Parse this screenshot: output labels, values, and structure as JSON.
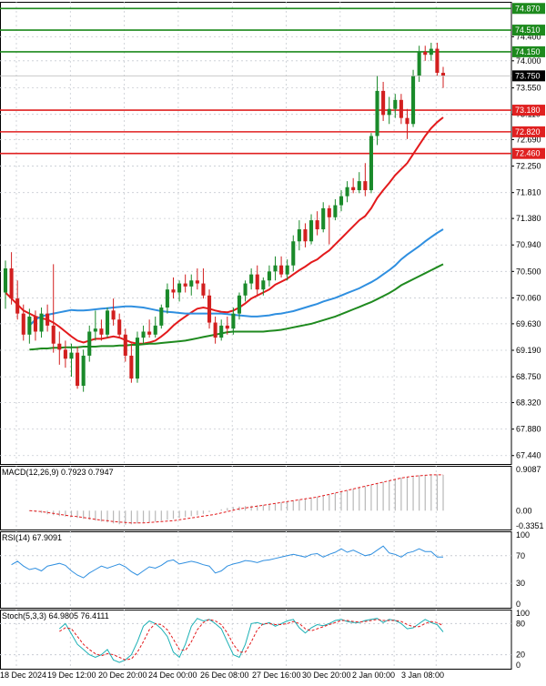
{
  "colors": {
    "background": "#ffffff",
    "grid": "#c8ccd2",
    "axis": "#000000",
    "up_candle": "#1a8a2a",
    "down_candle": "#d21f1f",
    "resistance_line": "#1d8a1d",
    "support_line": "#e02020",
    "price_label_bg": "#000000",
    "ma_fast": "#e31a1c",
    "ma_mid": "#2f8fe0",
    "ma_slow": "#1f8a1f",
    "macd_hist": "#b8b8b8",
    "macd_signal": "#e31a1c",
    "rsi_line": "#2f8fe0",
    "stoch_main": "#1ab0b5",
    "stoch_signal": "#e31a1c"
  },
  "chart_data": [
    {
      "type": "candlestick",
      "panel": "price",
      "yaxis": {
        "ylim": [
          67.3,
          74.98
        ],
        "tick_labels": [
          "74.400",
          "74.000",
          "73.550",
          "73.110",
          "72.690",
          "72.250",
          "71.810",
          "71.380",
          "70.940",
          "70.500",
          "70.060",
          "69.630",
          "69.190",
          "68.750",
          "68.320",
          "67.880",
          "67.440"
        ]
      },
      "xaxis": {
        "tick_labels": [
          "18 Dec 2024",
          "19 Dec 12:00",
          "20 Dec 20:00",
          "24 Dec 00:00",
          "26 Dec 08:00",
          "27 Dec 16:00",
          "30 Dec 20:00",
          "2 Jan 00:00",
          "3 Jan 08:00"
        ]
      },
      "current_price": "73.750",
      "resistance_levels": [
        "74.870",
        "74.510",
        "74.150"
      ],
      "support_levels": [
        "73.180",
        "72.820",
        "72.460"
      ],
      "candles": [
        {
          "o": 70.15,
          "h": 70.68,
          "l": 69.88,
          "c": 70.55
        },
        {
          "o": 70.55,
          "h": 70.82,
          "l": 69.95,
          "c": 70.05
        },
        {
          "o": 70.05,
          "h": 70.35,
          "l": 69.7,
          "c": 69.8
        },
        {
          "o": 69.8,
          "h": 69.95,
          "l": 69.35,
          "c": 69.45
        },
        {
          "o": 69.45,
          "h": 69.88,
          "l": 69.3,
          "c": 69.75
        },
        {
          "o": 69.75,
          "h": 69.85,
          "l": 69.35,
          "c": 69.5
        },
        {
          "o": 69.5,
          "h": 69.9,
          "l": 69.4,
          "c": 69.8
        },
        {
          "o": 69.8,
          "h": 69.95,
          "l": 69.5,
          "c": 69.6
        },
        {
          "o": 69.6,
          "h": 70.62,
          "l": 69.15,
          "c": 69.3
        },
        {
          "o": 69.3,
          "h": 69.5,
          "l": 68.95,
          "c": 69.2
        },
        {
          "o": 69.2,
          "h": 69.35,
          "l": 68.9,
          "c": 69.05
        },
        {
          "o": 69.05,
          "h": 69.3,
          "l": 68.75,
          "c": 69.15
        },
        {
          "o": 69.15,
          "h": 69.25,
          "l": 68.55,
          "c": 68.6
        },
        {
          "o": 68.6,
          "h": 69.2,
          "l": 68.5,
          "c": 69.1
        },
        {
          "o": 69.1,
          "h": 69.6,
          "l": 69.0,
          "c": 69.5
        },
        {
          "o": 69.5,
          "h": 69.85,
          "l": 69.35,
          "c": 69.55
        },
        {
          "o": 69.55,
          "h": 69.7,
          "l": 69.35,
          "c": 69.45
        },
        {
          "o": 69.45,
          "h": 69.9,
          "l": 69.4,
          "c": 69.85
        },
        {
          "o": 69.85,
          "h": 70.05,
          "l": 69.6,
          "c": 69.7
        },
        {
          "o": 69.7,
          "h": 69.8,
          "l": 69.4,
          "c": 69.45
        },
        {
          "o": 69.45,
          "h": 69.55,
          "l": 69.0,
          "c": 69.1
        },
        {
          "o": 69.1,
          "h": 69.3,
          "l": 68.65,
          "c": 68.72
        },
        {
          "o": 68.72,
          "h": 69.5,
          "l": 68.65,
          "c": 69.4
        },
        {
          "o": 69.4,
          "h": 69.6,
          "l": 69.3,
          "c": 69.5
        },
        {
          "o": 69.5,
          "h": 69.7,
          "l": 69.4,
          "c": 69.45
        },
        {
          "o": 69.45,
          "h": 69.75,
          "l": 69.4,
          "c": 69.6
        },
        {
          "o": 69.6,
          "h": 69.95,
          "l": 69.55,
          "c": 69.9
        },
        {
          "o": 69.9,
          "h": 70.3,
          "l": 69.8,
          "c": 70.2
        },
        {
          "o": 70.2,
          "h": 70.4,
          "l": 70.05,
          "c": 70.15
        },
        {
          "o": 70.15,
          "h": 70.35,
          "l": 70.0,
          "c": 70.3
        },
        {
          "o": 70.3,
          "h": 70.45,
          "l": 70.15,
          "c": 70.25
        },
        {
          "o": 70.25,
          "h": 70.45,
          "l": 70.1,
          "c": 70.35
        },
        {
          "o": 70.35,
          "h": 70.55,
          "l": 70.2,
          "c": 70.3
        },
        {
          "o": 70.3,
          "h": 70.55,
          "l": 70.05,
          "c": 70.1
        },
        {
          "o": 70.1,
          "h": 70.2,
          "l": 69.55,
          "c": 69.65
        },
        {
          "o": 69.65,
          "h": 69.75,
          "l": 69.3,
          "c": 69.4
        },
        {
          "o": 69.4,
          "h": 69.7,
          "l": 69.35,
          "c": 69.6
        },
        {
          "o": 69.6,
          "h": 69.75,
          "l": 69.45,
          "c": 69.55
        },
        {
          "o": 69.55,
          "h": 69.9,
          "l": 69.45,
          "c": 69.8
        },
        {
          "o": 69.8,
          "h": 70.15,
          "l": 69.7,
          "c": 70.1
        },
        {
          "o": 70.1,
          "h": 70.35,
          "l": 70.0,
          "c": 70.3
        },
        {
          "o": 70.3,
          "h": 70.55,
          "l": 70.2,
          "c": 70.45
        },
        {
          "o": 70.45,
          "h": 70.6,
          "l": 70.1,
          "c": 70.2
        },
        {
          "o": 70.2,
          "h": 70.4,
          "l": 70.1,
          "c": 70.35
        },
        {
          "o": 70.35,
          "h": 70.6,
          "l": 70.25,
          "c": 70.5
        },
        {
          "o": 70.5,
          "h": 70.75,
          "l": 70.35,
          "c": 70.6
        },
        {
          "o": 70.6,
          "h": 70.75,
          "l": 70.4,
          "c": 70.45
        },
        {
          "o": 70.45,
          "h": 70.7,
          "l": 70.35,
          "c": 70.6
        },
        {
          "o": 70.6,
          "h": 71.1,
          "l": 70.5,
          "c": 71.0
        },
        {
          "o": 71.0,
          "h": 71.35,
          "l": 70.85,
          "c": 71.2
        },
        {
          "o": 71.2,
          "h": 71.3,
          "l": 70.9,
          "c": 71.0
        },
        {
          "o": 71.0,
          "h": 71.45,
          "l": 70.95,
          "c": 71.35
        },
        {
          "o": 71.35,
          "h": 71.5,
          "l": 71.1,
          "c": 71.2
        },
        {
          "o": 71.2,
          "h": 71.65,
          "l": 71.15,
          "c": 71.55
        },
        {
          "o": 71.55,
          "h": 71.6,
          "l": 70.95,
          "c": 71.4
        },
        {
          "o": 71.4,
          "h": 71.7,
          "l": 71.35,
          "c": 71.6
        },
        {
          "o": 71.6,
          "h": 71.85,
          "l": 71.5,
          "c": 71.75
        },
        {
          "o": 71.75,
          "h": 72.0,
          "l": 71.65,
          "c": 71.9
        },
        {
          "o": 71.9,
          "h": 72.05,
          "l": 71.8,
          "c": 71.85
        },
        {
          "o": 71.85,
          "h": 72.15,
          "l": 71.8,
          "c": 72.0
        },
        {
          "o": 72.0,
          "h": 72.3,
          "l": 71.75,
          "c": 71.85
        },
        {
          "o": 71.85,
          "h": 72.8,
          "l": 71.8,
          "c": 72.75
        },
        {
          "o": 72.75,
          "h": 73.75,
          "l": 72.6,
          "c": 73.5
        },
        {
          "o": 73.5,
          "h": 73.65,
          "l": 73.0,
          "c": 73.1
        },
        {
          "o": 73.1,
          "h": 73.4,
          "l": 72.95,
          "c": 73.2
        },
        {
          "o": 73.2,
          "h": 73.45,
          "l": 73.05,
          "c": 73.35
        },
        {
          "o": 73.35,
          "h": 73.45,
          "l": 72.95,
          "c": 73.05
        },
        {
          "o": 73.05,
          "h": 73.2,
          "l": 72.7,
          "c": 72.95
        },
        {
          "o": 72.95,
          "h": 73.85,
          "l": 72.9,
          "c": 73.75
        },
        {
          "o": 73.75,
          "h": 74.25,
          "l": 73.65,
          "c": 74.15
        },
        {
          "o": 74.15,
          "h": 74.25,
          "l": 74.0,
          "c": 74.1
        },
        {
          "o": 74.1,
          "h": 74.3,
          "l": 74.0,
          "c": 74.2
        },
        {
          "o": 74.2,
          "h": 74.3,
          "l": 73.75,
          "c": 73.8
        },
        {
          "o": 73.8,
          "h": 73.9,
          "l": 73.55,
          "c": 73.75
        }
      ],
      "moving_averages": [
        {
          "color_key": "ma_fast",
          "values": [
            70.15,
            70.05,
            69.95,
            69.85,
            69.8,
            69.75,
            69.72,
            69.7,
            69.65,
            69.58,
            69.5,
            69.42,
            69.35,
            69.32,
            69.35,
            69.38,
            69.38,
            69.4,
            69.42,
            69.4,
            69.36,
            69.32,
            69.3,
            69.3,
            69.32,
            69.35,
            69.42,
            69.5,
            69.6,
            69.68,
            69.75,
            69.82,
            69.88,
            69.9,
            69.88,
            69.85,
            69.83,
            69.82,
            69.85,
            69.9,
            69.97,
            70.05,
            70.1,
            70.15,
            70.2,
            70.28,
            70.33,
            70.38,
            70.45,
            70.52,
            70.58,
            70.65,
            70.7,
            70.78,
            70.85,
            70.95,
            71.05,
            71.15,
            71.25,
            71.35,
            71.42,
            71.55,
            71.72,
            71.85,
            71.97,
            72.1,
            72.2,
            72.3,
            72.45,
            72.6,
            72.75,
            72.88,
            72.98,
            73.06
          ]
        },
        {
          "color_key": "ma_mid",
          "values": [
            69.6,
            69.7,
            69.75,
            69.78,
            69.8,
            69.82,
            69.84,
            69.86,
            69.85,
            69.85,
            69.86,
            69.87,
            69.88,
            69.89,
            69.9,
            69.91,
            69.92,
            69.92,
            69.91,
            69.9,
            69.88,
            69.86,
            69.84,
            69.83,
            69.82,
            69.81,
            69.8,
            69.8,
            69.8,
            69.8,
            69.8,
            69.8,
            69.8,
            69.79,
            69.78,
            69.77,
            69.76,
            69.75,
            69.75,
            69.76,
            69.77,
            69.79,
            69.8,
            69.82,
            69.84,
            69.87,
            69.9,
            69.93,
            69.96,
            70.0,
            70.03,
            70.06,
            70.1,
            70.14,
            70.18,
            70.22,
            70.27,
            70.32,
            70.38,
            70.45,
            70.52,
            70.6,
            70.7,
            70.78,
            70.85,
            70.92,
            71.0,
            71.07,
            71.14,
            71.2
          ]
        },
        {
          "color_key": "ma_slow",
          "values": [
            69.2,
            69.21,
            69.22,
            69.22,
            69.23,
            69.23,
            69.24,
            69.24,
            69.24,
            69.25,
            69.25,
            69.25,
            69.26,
            69.26,
            69.26,
            69.27,
            69.27,
            69.28,
            69.28,
            69.29,
            69.3,
            69.3,
            69.31,
            69.32,
            69.33,
            69.34,
            69.35,
            69.37,
            69.39,
            69.41,
            69.43,
            69.45,
            69.47,
            69.49,
            69.5,
            69.5,
            69.5,
            69.5,
            69.5,
            69.5,
            69.51,
            69.52,
            69.53,
            69.55,
            69.57,
            69.59,
            69.61,
            69.63,
            69.66,
            69.69,
            69.72,
            69.75,
            69.79,
            69.83,
            69.87,
            69.91,
            69.95,
            69.99,
            70.04,
            70.09,
            70.14,
            70.2,
            70.27,
            70.32,
            70.37,
            70.42,
            70.47,
            70.52,
            70.57,
            70.62
          ]
        }
      ]
    },
    {
      "type": "bar",
      "panel": "macd",
      "label": "MACD(12,26,9) 0.7923 0.7947",
      "ylim": [
        -0.3351,
        0.9087
      ],
      "tick_labels": [
        "0.9087",
        "0.00",
        "-0.3351"
      ],
      "histogram": [
        -0.01,
        -0.03,
        -0.05,
        -0.08,
        -0.1,
        -0.12,
        -0.13,
        -0.14,
        -0.16,
        -0.18,
        -0.2,
        -0.22,
        -0.24,
        -0.26,
        -0.28,
        -0.3,
        -0.31,
        -0.3,
        -0.28,
        -0.26,
        -0.25,
        -0.24,
        -0.22,
        -0.2,
        -0.18,
        -0.16,
        -0.14,
        -0.12,
        -0.1,
        -0.07,
        -0.03,
        0.0,
        0.03,
        0.06,
        0.08,
        0.09,
        0.1,
        0.11,
        0.12,
        0.13,
        0.14,
        0.16,
        0.18,
        0.2,
        0.22,
        0.24,
        0.26,
        0.28,
        0.3,
        0.33,
        0.36,
        0.39,
        0.42,
        0.45,
        0.48,
        0.51,
        0.54,
        0.57,
        0.6,
        0.63,
        0.66,
        0.7,
        0.73,
        0.75,
        0.77,
        0.78,
        0.79,
        0.8,
        0.8,
        0.79
      ],
      "signal": [
        0.0,
        -0.01,
        -0.02,
        -0.04,
        -0.06,
        -0.08,
        -0.1,
        -0.12,
        -0.13,
        -0.15,
        -0.17,
        -0.19,
        -0.21,
        -0.22,
        -0.24,
        -0.25,
        -0.26,
        -0.27,
        -0.27,
        -0.27,
        -0.26,
        -0.25,
        -0.24,
        -0.23,
        -0.22,
        -0.2,
        -0.18,
        -0.16,
        -0.14,
        -0.12,
        -0.1,
        -0.08,
        -0.05,
        -0.02,
        0.01,
        0.04,
        0.06,
        0.08,
        0.1,
        0.12,
        0.14,
        0.16,
        0.18,
        0.2,
        0.22,
        0.24,
        0.26,
        0.28,
        0.3,
        0.33,
        0.36,
        0.39,
        0.42,
        0.45,
        0.48,
        0.51,
        0.54,
        0.57,
        0.6,
        0.63,
        0.66,
        0.69,
        0.72,
        0.74,
        0.76,
        0.77,
        0.78,
        0.79,
        0.79,
        0.79
      ]
    },
    {
      "type": "line",
      "panel": "rsi",
      "label": "RSI(14) 67.9091",
      "ylim": [
        0,
        100
      ],
      "tick_labels": [
        "100",
        "70",
        "30",
        "0"
      ],
      "values": [
        57,
        62,
        55,
        50,
        52,
        48,
        55,
        57,
        59,
        56,
        48,
        42,
        38,
        45,
        50,
        55,
        52,
        55,
        58,
        54,
        47,
        42,
        48,
        54,
        52,
        56,
        62,
        64,
        58,
        60,
        62,
        60,
        57,
        55,
        45,
        48,
        55,
        58,
        60,
        63,
        62,
        60,
        63,
        64,
        66,
        68,
        70,
        72,
        70,
        68,
        72,
        73,
        68,
        72,
        75,
        80,
        75,
        78,
        74,
        70,
        72,
        78,
        84,
        74,
        72,
        68,
        74,
        76,
        80,
        76,
        76,
        68,
        68
      ]
    },
    {
      "type": "line",
      "panel": "stochastic",
      "label": "Stoch(5,3,3) 64.9805 76.4111",
      "ylim": [
        0,
        100
      ],
      "tick_labels": [
        "100",
        "80",
        "20",
        "0"
      ],
      "main": [
        70,
        80,
        60,
        40,
        30,
        20,
        15,
        20,
        30,
        10,
        5,
        10,
        20,
        45,
        75,
        85,
        80,
        70,
        55,
        25,
        15,
        40,
        75,
        90,
        85,
        88,
        80,
        70,
        45,
        20,
        15,
        40,
        80,
        82,
        78,
        82,
        75,
        80,
        85,
        88,
        72,
        62,
        72,
        78,
        76,
        80,
        86,
        88,
        84,
        82,
        82,
        86,
        88,
        90,
        82,
        88,
        86,
        80,
        70,
        72,
        80,
        88,
        82,
        78,
        64
      ],
      "signal": [
        65,
        72,
        70,
        55,
        40,
        30,
        22,
        18,
        22,
        20,
        15,
        10,
        12,
        25,
        45,
        68,
        80,
        78,
        68,
        50,
        30,
        28,
        45,
        68,
        82,
        88,
        85,
        78,
        62,
        40,
        25,
        25,
        45,
        68,
        80,
        80,
        78,
        78,
        80,
        84,
        80,
        70,
        66,
        70,
        74,
        78,
        82,
        86,
        86,
        84,
        83,
        84,
        86,
        88,
        86,
        86,
        86,
        84,
        78,
        74,
        74,
        80,
        84,
        82,
        76
      ]
    }
  ]
}
